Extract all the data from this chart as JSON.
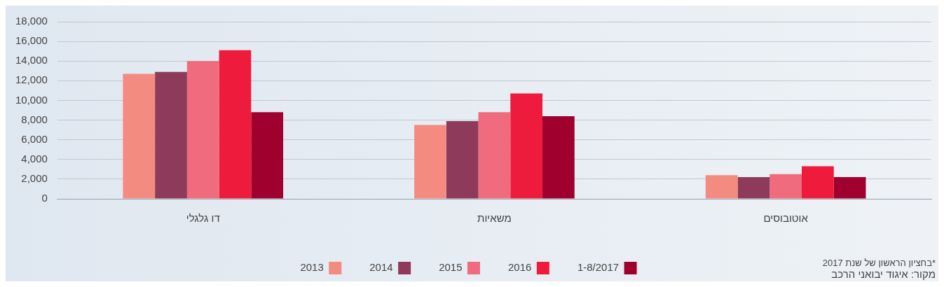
{
  "chart_data": {
    "type": "bar",
    "categories": [
      "דו גלגלי",
      "משאיות",
      "אוטובוסים"
    ],
    "series": [
      {
        "name": "2013",
        "color": "#f48b80",
        "values": [
          12700,
          7500,
          2400
        ]
      },
      {
        "name": "2014",
        "color": "#8e3a5a",
        "values": [
          12900,
          7900,
          2200
        ]
      },
      {
        "name": "2015",
        "color": "#f06b7e",
        "values": [
          14000,
          8800,
          2500
        ]
      },
      {
        "name": "2016",
        "color": "#ee1b3c",
        "values": [
          15100,
          10700,
          3300
        ]
      },
      {
        "name": "1-8/2017",
        "color": "#a0002d",
        "values": [
          8800,
          8400,
          2200
        ]
      }
    ],
    "ylim": [
      0,
      18000
    ],
    "yticks": [
      0,
      {
        "value": 2000,
        "label": "2,000"
      },
      {
        "value": 4000,
        "label": "4,000"
      },
      {
        "value": 6000,
        "label": "6,000"
      },
      {
        "value": 8000,
        "label": "8,000"
      },
      {
        "value": 10000,
        "label": "10,000"
      },
      {
        "value": 12000,
        "label": "12,000"
      },
      {
        "value": 14000,
        "label": "14,000"
      },
      {
        "value": 16000,
        "label": "16,000"
      },
      {
        "value": 18000,
        "label": "18,000"
      }
    ],
    "grid": "y",
    "legend": "bottom",
    "annotations": [
      "*בחציון הראשון של שנת 2017",
      "מקור: איגוד יבואני הרכב"
    ]
  }
}
